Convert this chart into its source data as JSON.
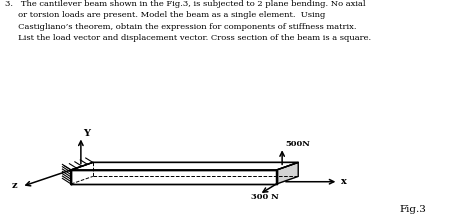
{
  "title_text": "3.   The cantilever beam shown in the Fig.3, is subjected to 2 plane bending. No axial\n     or torsion loads are present. Model the beam as a single element.  Using\n     Castigliano’s theorem, obtain the expression for components of stiffness matrix.\n     List the load vector and displacement vector. Cross section of the beam is a square.",
  "fig3_label": "Fig.3",
  "bg_color": "#ffffff",
  "beam_color": "#000000",
  "text_color": "#000000",
  "force_500": "500N",
  "force_300": "300 N",
  "axis_x_label": "x",
  "axis_y_label": "Y",
  "axis_z_label": "z"
}
